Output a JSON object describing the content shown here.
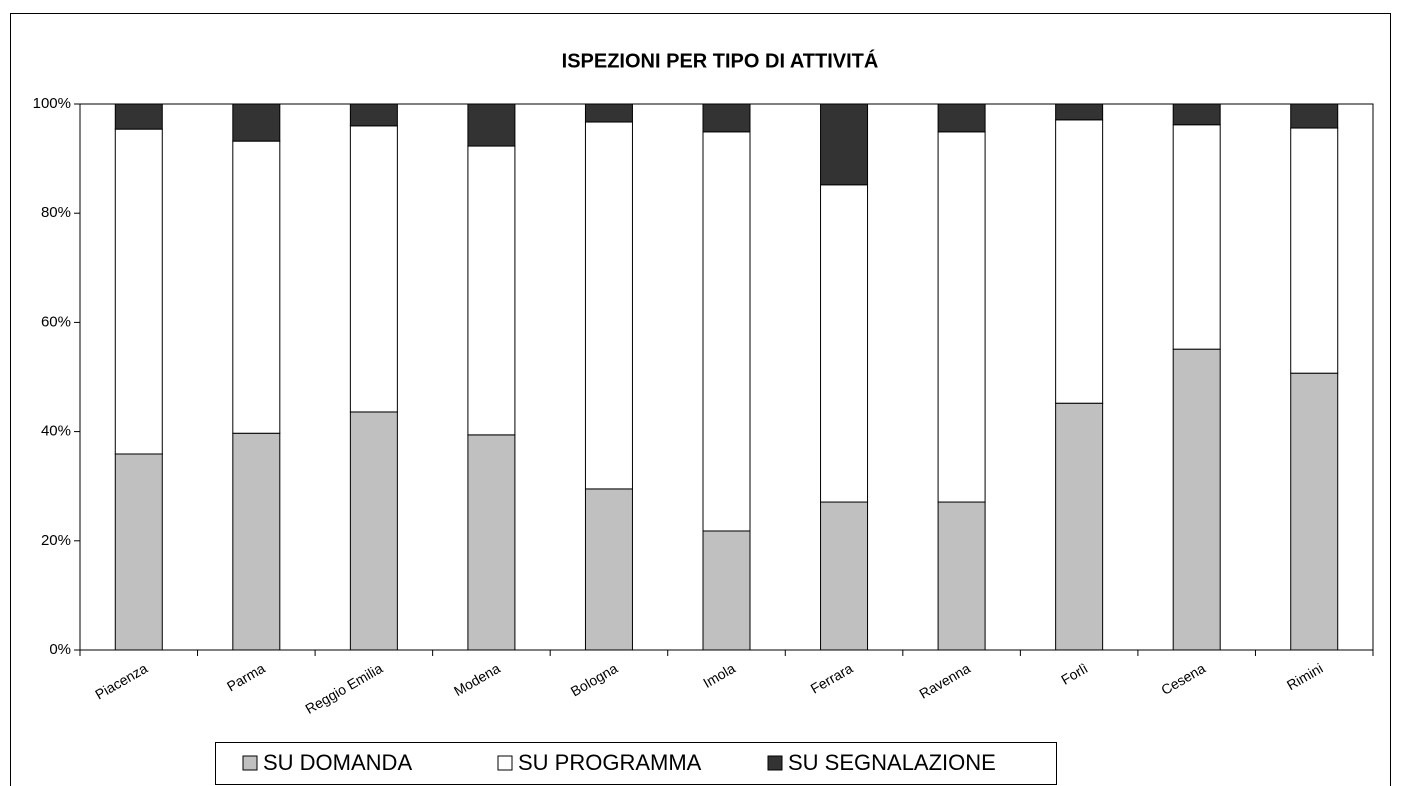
{
  "chart_data": {
    "type": "stacked_bar_100",
    "title": "ISPEZIONI PER TIPO DI ATTIVITÁ",
    "categories": [
      "Piacenza",
      "Parma",
      "Reggio Emilia",
      "Modena",
      "Bologna",
      "Imola",
      "Ferrara",
      "Ravenna",
      "Forlì",
      "Cesena",
      "Rimini"
    ],
    "series": [
      {
        "name": "SU DOMANDA",
        "color": "#c0c0c0",
        "values": [
          35.9,
          39.7,
          43.6,
          39.4,
          29.5,
          21.8,
          27.1,
          27.1,
          45.2,
          55.1,
          50.7
        ]
      },
      {
        "name": "SU PROGRAMMA",
        "color": "#ffffff",
        "values": [
          59.5,
          53.5,
          52.4,
          52.9,
          67.2,
          73.1,
          58.1,
          67.8,
          51.9,
          41.1,
          44.9
        ]
      },
      {
        "name": "SU SEGNALAZIONE",
        "color": "#333333",
        "values": [
          4.6,
          6.8,
          4.0,
          7.7,
          3.3,
          5.1,
          14.8,
          5.1,
          2.9,
          3.8,
          4.4
        ]
      }
    ],
    "ylim": [
      0,
      100
    ],
    "yticks": [
      {
        "value": 0,
        "label": "0%"
      },
      {
        "value": 20,
        "label": "20%"
      },
      {
        "value": 40,
        "label": "40%"
      },
      {
        "value": 60,
        "label": "60%"
      },
      {
        "value": 80,
        "label": "80%"
      },
      {
        "value": 100,
        "label": "100%"
      }
    ],
    "legend": "bottom"
  }
}
